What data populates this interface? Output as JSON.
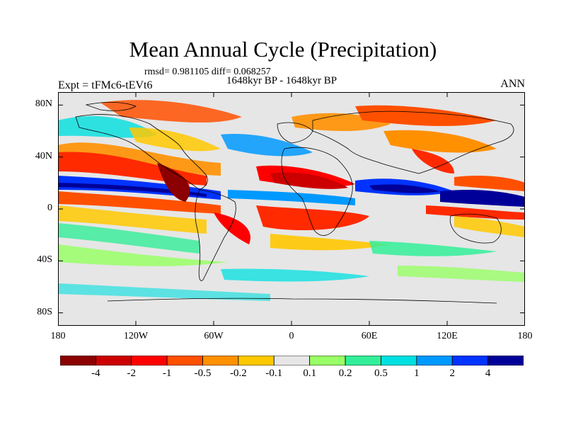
{
  "title": "Mean Annual Cycle (Precipitation)",
  "stats_line": "rmsd= 0.981105 diff= 0.068257",
  "period": "1648kyr BP - 1648kyr BP",
  "experiment": "Expt = tFMc6-tEVt6",
  "season": "ANN",
  "map": {
    "lat_range": [
      -90,
      90
    ],
    "lon_range": [
      -180,
      180
    ],
    "y_ticks": [
      {
        "value": 80,
        "label": "80N"
      },
      {
        "value": 40,
        "label": "40N"
      },
      {
        "value": 0,
        "label": "0"
      },
      {
        "value": -40,
        "label": "40S"
      },
      {
        "value": -80,
        "label": "80S"
      }
    ],
    "x_ticks": [
      {
        "value": -180,
        "label": "180"
      },
      {
        "value": -120,
        "label": "120W"
      },
      {
        "value": -60,
        "label": "60W"
      },
      {
        "value": 0,
        "label": "0"
      },
      {
        "value": 60,
        "label": "60E"
      },
      {
        "value": 120,
        "label": "120E"
      },
      {
        "value": 180,
        "label": "180"
      }
    ],
    "background_color": "#e6e6e6"
  },
  "colorbar": {
    "colors": [
      "#8b0000",
      "#cc0000",
      "#ff0000",
      "#ff5000",
      "#ff9000",
      "#ffc800",
      "#e6e6e6",
      "#99ff66",
      "#33ee99",
      "#00e0e0",
      "#0099ff",
      "#0033ff",
      "#000099"
    ],
    "labels": [
      "-4",
      "-2",
      "-1",
      "-0.5",
      "-0.2",
      "-0.1",
      "0.1",
      "0.2",
      "0.5",
      "1",
      "2",
      "4"
    ]
  }
}
